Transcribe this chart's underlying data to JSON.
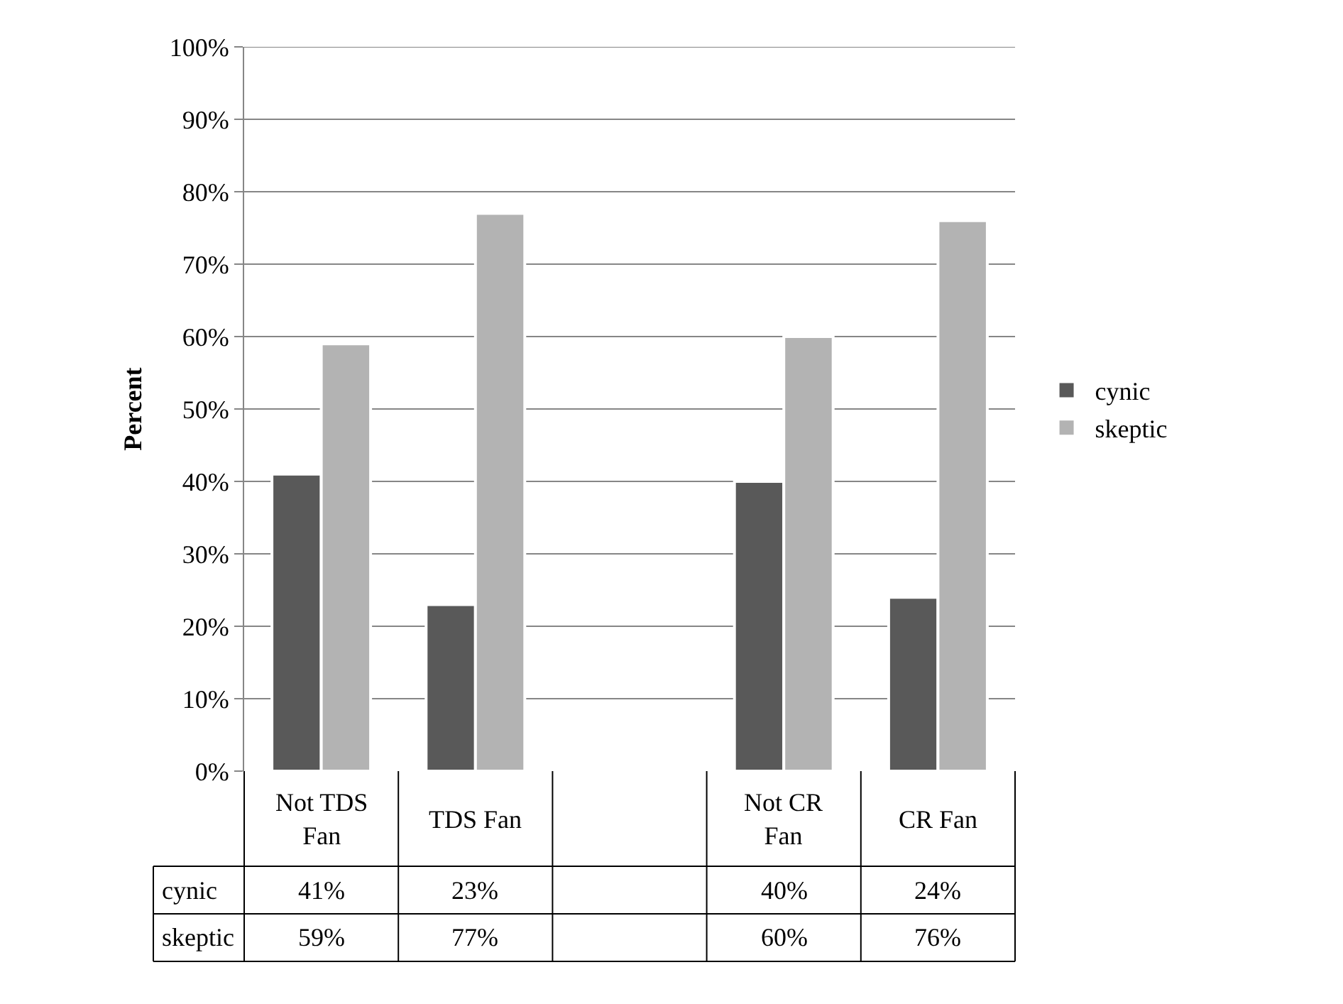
{
  "chart_data": {
    "type": "bar",
    "ylabel": "Percent",
    "categories": [
      "Not TDS Fan",
      "TDS Fan",
      null,
      "Not CR Fan",
      "CR Fan"
    ],
    "series": [
      {
        "name": "cynic",
        "color": "#595959",
        "values": [
          41,
          23,
          null,
          40,
          24
        ],
        "value_labels": [
          "41%",
          "23%",
          null,
          "40%",
          "24%"
        ]
      },
      {
        "name": "skeptic",
        "color": "#b3b3b3",
        "values": [
          59,
          77,
          null,
          60,
          76
        ],
        "value_labels": [
          "59%",
          "77%",
          null,
          "60%",
          "76%"
        ]
      }
    ],
    "ylim": [
      0,
      100
    ],
    "yticks": [
      {
        "value": 0,
        "label": "0%"
      },
      {
        "value": 10,
        "label": "10%"
      },
      {
        "value": 20,
        "label": "20%"
      },
      {
        "value": 30,
        "label": "30%"
      },
      {
        "value": 40,
        "label": "40%"
      },
      {
        "value": 50,
        "label": "50%"
      },
      {
        "value": 60,
        "label": "60%"
      },
      {
        "value": 70,
        "label": "70%"
      },
      {
        "value": 80,
        "label": "80%"
      },
      {
        "value": 90,
        "label": "90%"
      },
      {
        "value": 100,
        "label": "100%"
      }
    ],
    "grid": "y",
    "legend": "right"
  }
}
